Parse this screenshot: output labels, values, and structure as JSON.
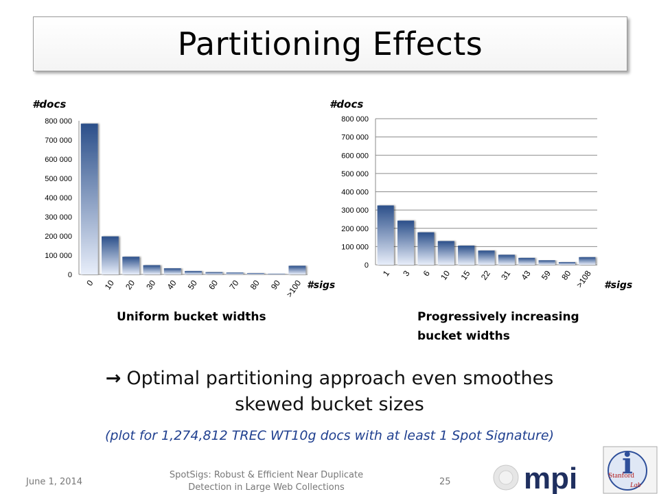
{
  "slide": {
    "title": "Partitioning Effects",
    "conclusion_arrow": "→",
    "conclusion_line1": "Optimal partitioning approach even smoothes",
    "conclusion_line2": "skewed bucket sizes",
    "note": "(plot for 1,274,812 TREC WT10g docs with at least 1 Spot Signature)",
    "footer": {
      "date": "June 1, 2014",
      "center_line1": "SpotSigs: Robust & Efficient Near Duplicate",
      "center_line2": "Detection in Large Web Collections",
      "page": "25"
    },
    "logos": {
      "mpi_text": "mpi",
      "stanford_text": "Stanford",
      "stanford_sub": "Lab"
    }
  },
  "left_chart": {
    "y_unit": "#docs",
    "x_unit": "#sigs",
    "caption": "Uniform bucket widths"
  },
  "right_chart": {
    "y_unit": "#docs",
    "x_unit": "#sigs",
    "caption_line1": "Progressively increasing",
    "caption_line2": "bucket widths"
  },
  "colors": {
    "bar_top": "#2b4f8a",
    "bar_bottom": "#e8eefa",
    "note": "#1f3f8f"
  },
  "chart_data": [
    {
      "type": "bar",
      "categories": [
        "0",
        "10",
        "20",
        "30",
        "40",
        "50",
        "60",
        "70",
        "80",
        "90",
        ">100"
      ],
      "values": [
        785000,
        198000,
        92000,
        48000,
        32000,
        18000,
        12000,
        10000,
        7000,
        4000,
        45000
      ],
      "xlabel": "#sigs",
      "ylabel": "#docs",
      "ylim": [
        0,
        800000
      ],
      "yticks": [
        0,
        100000,
        200000,
        300000,
        400000,
        500000,
        600000,
        700000,
        800000
      ],
      "ytick_labels": [
        "0",
        "100 000",
        "200 000",
        "300 000",
        "400 000",
        "500 000",
        "600 000",
        "700 000",
        "800 000"
      ],
      "grid": false,
      "title": "Uniform bucket widths"
    },
    {
      "type": "bar",
      "categories": [
        "1",
        "3",
        "6",
        "10",
        "15",
        "22",
        "31",
        "43",
        "59",
        "80",
        ">108"
      ],
      "values": [
        325000,
        242000,
        178000,
        130000,
        105000,
        78000,
        55000,
        38000,
        25000,
        15000,
        42000
      ],
      "xlabel": "#sigs",
      "ylabel": "#docs",
      "ylim": [
        0,
        800000
      ],
      "yticks": [
        0,
        100000,
        200000,
        300000,
        400000,
        500000,
        600000,
        700000,
        800000
      ],
      "ytick_labels": [
        "0",
        "100 000",
        "200 000",
        "300 000",
        "400 000",
        "500 000",
        "600 000",
        "700 000",
        "800 000"
      ],
      "grid": true,
      "title": "Progressively increasing bucket widths"
    }
  ]
}
